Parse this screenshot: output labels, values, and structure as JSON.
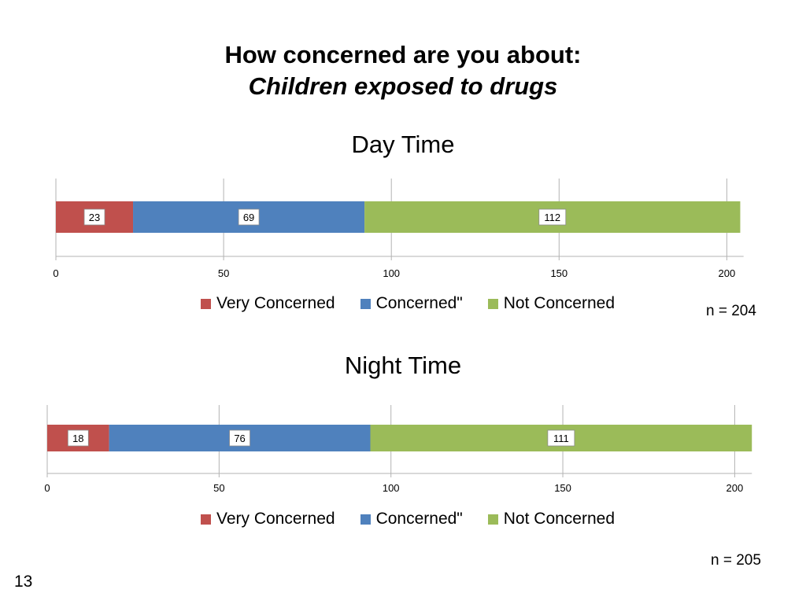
{
  "slide": {
    "title_line1": "How concerned are you about:",
    "title_line2": "Children exposed to drugs",
    "page_number": "13"
  },
  "colors": {
    "very_concerned": "#c0504d",
    "concerned": "#4f81bd",
    "not_concerned": "#9bbb59"
  },
  "chart_data": [
    {
      "type": "bar",
      "orientation": "horizontal",
      "stacked": true,
      "title": "Day Time",
      "xlim": [
        0,
        205
      ],
      "x_ticks": [
        0,
        50,
        100,
        150,
        200
      ],
      "grid": true,
      "legend_placement": "bottom",
      "series": [
        {
          "name": "Very Concerned",
          "values": [
            23
          ]
        },
        {
          "name": "Concerned\"",
          "values": [
            69
          ]
        },
        {
          "name": "Not Concerned",
          "values": [
            112
          ]
        }
      ],
      "annotation": "n = 204"
    },
    {
      "type": "bar",
      "orientation": "horizontal",
      "stacked": true,
      "title": "Night Time",
      "xlim": [
        0,
        205
      ],
      "x_ticks": [
        0,
        50,
        100,
        150,
        200
      ],
      "grid": true,
      "legend_placement": "bottom",
      "series": [
        {
          "name": "Very Concerned",
          "values": [
            18
          ]
        },
        {
          "name": "Concerned\"",
          "values": [
            76
          ]
        },
        {
          "name": "Not Concerned",
          "values": [
            111
          ]
        }
      ],
      "annotation": "n = 205"
    }
  ]
}
